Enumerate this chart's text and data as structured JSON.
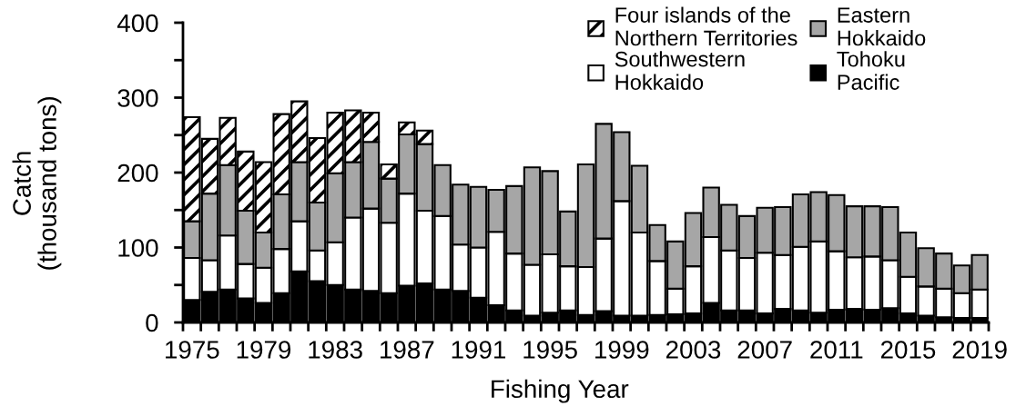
{
  "chart_data": {
    "type": "bar",
    "stacked": true,
    "xlabel": "Fishing Year",
    "ylabel": "Catch\n(thousand tons)",
    "categories": [
      "1975",
      null,
      null,
      null,
      "1979",
      null,
      null,
      null,
      "1983",
      null,
      null,
      null,
      "1987",
      null,
      null,
      null,
      "1991",
      null,
      null,
      null,
      "1995",
      null,
      null,
      null,
      "1999",
      null,
      null,
      null,
      "2003",
      null,
      null,
      null,
      "2007",
      null,
      null,
      null,
      "2011",
      null,
      null,
      null,
      "2015",
      null,
      null,
      null,
      "2019"
    ],
    "ylim": [
      0,
      400
    ],
    "yticks": [
      0,
      {
        "value": 50,
        "label": null
      },
      100,
      {
        "value": 150,
        "label": null
      },
      200,
      {
        "value": 250,
        "label": null
      },
      300,
      {
        "value": 350,
        "label": null
      },
      400
    ],
    "legend": "top right",
    "series": [
      {
        "name": "Tohoku\nPacific",
        "color": "#000000",
        "values": [
          30,
          41,
          44,
          32,
          26,
          39,
          68,
          55,
          50,
          44,
          42,
          39,
          49,
          52,
          44,
          42,
          33,
          23,
          16,
          9,
          13,
          16,
          10,
          15,
          9,
          9,
          10,
          11,
          12,
          26,
          16,
          16,
          12,
          18,
          16,
          13,
          17,
          18,
          17,
          19,
          12,
          9,
          7,
          6,
          6
        ]
      },
      {
        "name": "Southwestern\nHokkaido",
        "color": "#ffffff",
        "values": [
          56,
          42,
          72,
          46,
          47,
          59,
          67,
          41,
          57,
          96,
          110,
          94,
          123,
          97,
          98,
          62,
          67,
          98,
          76,
          68,
          78,
          59,
          64,
          97,
          153,
          111,
          72,
          34,
          63,
          88,
          80,
          70,
          81,
          72,
          85,
          95,
          78,
          69,
          71,
          64,
          49,
          39,
          38,
          33,
          38
        ]
      },
      {
        "name": "Eastern\nHokkaido",
        "color": "#a6a6a6",
        "values": [
          49,
          89,
          94,
          71,
          47,
          73,
          79,
          64,
          92,
          74,
          89,
          59,
          79,
          89,
          68,
          80,
          81,
          56,
          90,
          130,
          111,
          73,
          137,
          153,
          92,
          89,
          48,
          63,
          71,
          66,
          61,
          56,
          60,
          64,
          70,
          66,
          75,
          68,
          67,
          71,
          59,
          51,
          47,
          37,
          46
        ]
      },
      {
        "name": "Four islands of the\nNorthern Territories",
        "color": "#000000",
        "values": [
          139,
          73,
          63,
          79,
          94,
          107,
          81,
          86,
          81,
          69,
          39,
          19,
          16,
          18,
          null,
          null,
          null,
          null,
          null,
          null,
          null,
          null,
          null,
          null,
          null,
          null,
          null,
          null,
          null,
          null,
          null,
          null,
          null,
          null,
          null,
          null,
          null,
          null,
          null,
          null,
          null,
          null,
          null,
          null,
          null
        ]
      }
    ]
  }
}
